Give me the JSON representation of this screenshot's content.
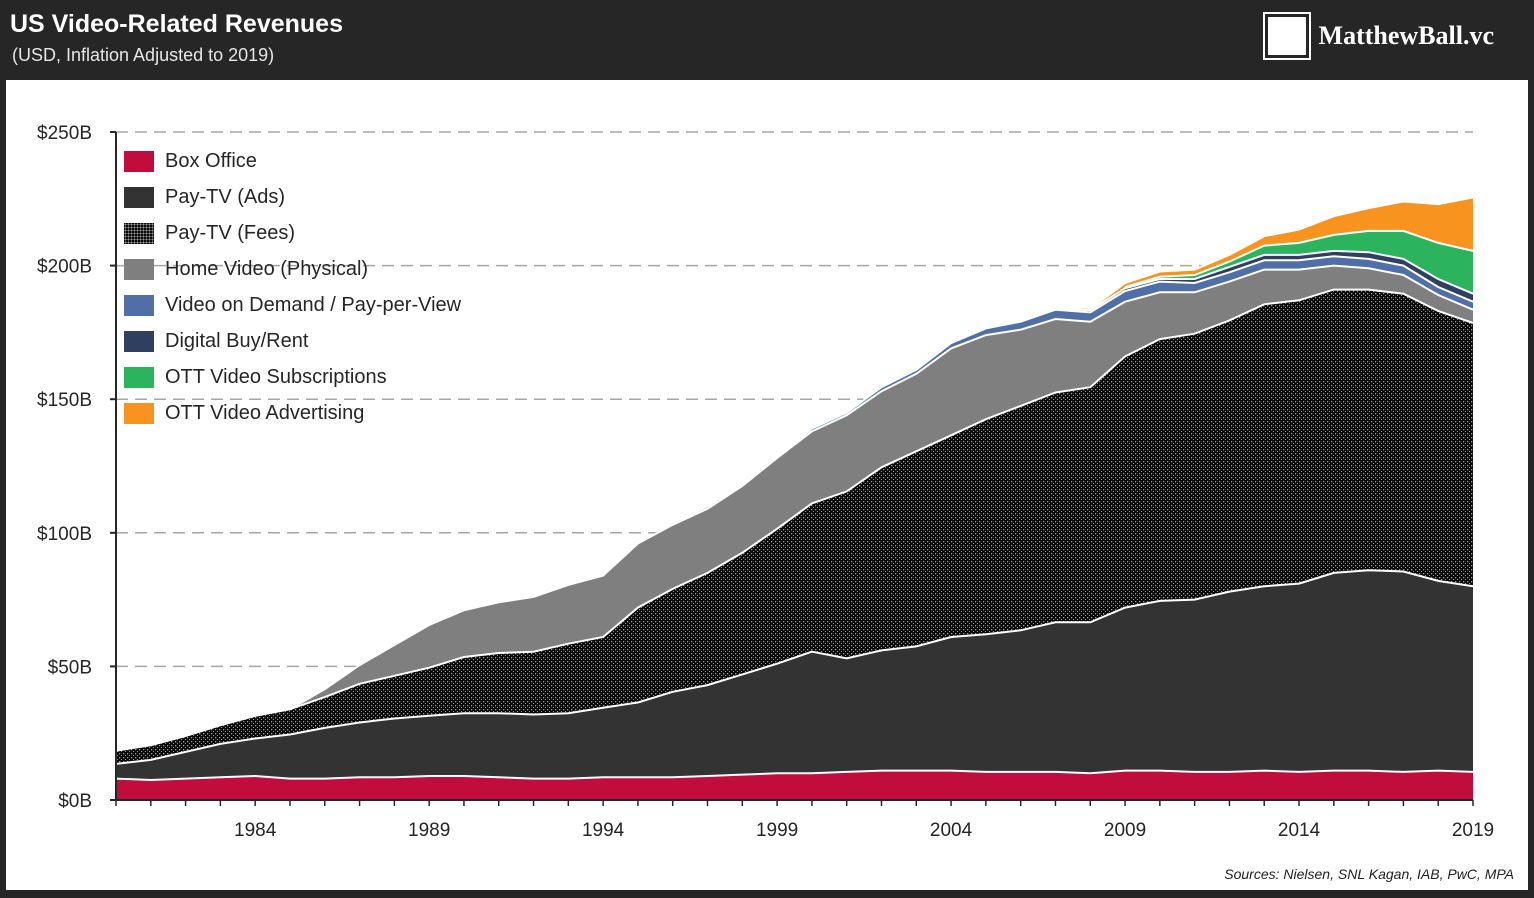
{
  "header": {
    "title": "US Video-Related Revenues",
    "subtitle": "(USD, Inflation Adjusted to 2019)",
    "brand": "MatthewBall.vc"
  },
  "source": "Sources: Nielsen, SNL Kagan, IAB, PwC, MPA",
  "chart_data": {
    "type": "area",
    "stacked": true,
    "x": [
      1980,
      1981,
      1982,
      1983,
      1984,
      1985,
      1986,
      1987,
      1988,
      1989,
      1990,
      1991,
      1992,
      1993,
      1994,
      1995,
      1996,
      1997,
      1998,
      1999,
      2000,
      2001,
      2002,
      2003,
      2004,
      2005,
      2006,
      2007,
      2008,
      2009,
      2010,
      2011,
      2012,
      2013,
      2014,
      2015,
      2016,
      2017,
      2018,
      2019
    ],
    "x_ticks": [
      "1984",
      "1989",
      "1994",
      "1999",
      "2004",
      "2009",
      "2014",
      "2019"
    ],
    "x_tick_values": [
      1984,
      1989,
      1994,
      1999,
      2004,
      2009,
      2014,
      2019
    ],
    "y_ticks": [
      "$0B",
      "$50B",
      "$100B",
      "$150B",
      "$200B",
      "$250B"
    ],
    "y_tick_values": [
      0,
      50,
      100,
      150,
      200,
      250
    ],
    "ylim": [
      0,
      250
    ],
    "grid": "horizontal dashed",
    "legend_position": "top-left",
    "series": [
      {
        "name": "Box Office",
        "color": "#c00d3c",
        "pattern": "solid",
        "values": [
          8,
          7.5,
          8,
          8.5,
          9,
          8,
          8,
          8.5,
          8.5,
          9,
          9,
          8.5,
          8,
          8,
          8.5,
          8.5,
          8.5,
          9,
          9.5,
          10,
          10,
          10.5,
          11,
          11,
          11,
          10.5,
          10.5,
          10.5,
          10,
          11,
          11,
          10.5,
          10.5,
          11,
          10.5,
          11,
          11,
          10.5,
          11,
          10.5
        ]
      },
      {
        "name": "Pay-TV (Ads)",
        "color": "#333333",
        "pattern": "solid",
        "values": [
          5.5,
          7.5,
          10,
          12.5,
          14,
          16.5,
          19,
          20.5,
          22,
          22.5,
          23.5,
          24,
          24,
          24.5,
          26,
          28,
          32,
          34,
          37.5,
          41,
          45.5,
          42.5,
          45,
          46.5,
          50,
          51.5,
          53,
          56,
          56.5,
          61,
          63.5,
          64.5,
          67.5,
          69,
          70.5,
          74,
          75,
          75,
          71,
          69.5
        ]
      },
      {
        "name": "Pay-TV (Fees)",
        "color": "#111111",
        "pattern": "dots",
        "values": [
          5,
          5.5,
          6,
          7,
          8.5,
          9.5,
          11.5,
          14.5,
          16,
          18,
          21,
          22.5,
          23.5,
          26,
          26.5,
          35.5,
          38.5,
          42,
          45.5,
          50.5,
          55.5,
          62.5,
          68.5,
          73,
          75.5,
          80.5,
          84,
          86,
          88,
          94,
          98,
          99.5,
          101.5,
          105.5,
          106,
          106,
          105,
          104,
          101,
          98.5
        ]
      },
      {
        "name": "Home Video (Physical)",
        "color": "#7f7f7f",
        "pattern": "solid",
        "values": [
          0,
          0,
          0,
          0,
          0,
          0,
          3,
          7,
          11.5,
          16,
          17.5,
          19,
          20.5,
          22,
          23,
          24,
          24,
          24,
          25,
          26.5,
          27,
          28.5,
          28.5,
          29,
          32.5,
          31.5,
          28.5,
          27.5,
          24.5,
          20.5,
          17.5,
          15.5,
          14.5,
          13,
          11.5,
          9,
          8,
          7,
          6,
          5
        ]
      },
      {
        "name": "Video on Demand / Pay-per-View",
        "color": "#4f6fa6",
        "pattern": "solid",
        "values": [
          0,
          0,
          0,
          0,
          0,
          0,
          0,
          0,
          0,
          0,
          0,
          0,
          0,
          0,
          0,
          0,
          0,
          0.5,
          0.5,
          0.5,
          1,
          1,
          1.5,
          1.5,
          2,
          2.5,
          3,
          3.5,
          3.5,
          4,
          4,
          3.5,
          3.5,
          3.5,
          3.5,
          3.5,
          3.5,
          3.5,
          3,
          3
        ]
      },
      {
        "name": "Digital Buy/Rent",
        "color": "#2e3f5f",
        "pattern": "solid",
        "values": [
          0,
          0,
          0,
          0,
          0,
          0,
          0,
          0,
          0,
          0,
          0,
          0,
          0,
          0,
          0,
          0,
          0,
          0,
          0,
          0,
          0,
          0,
          0,
          0,
          0,
          0,
          0.3,
          0.5,
          0.8,
          1,
          1,
          1.5,
          2,
          2,
          2,
          2,
          2.5,
          2.5,
          3,
          3
        ]
      },
      {
        "name": "OTT Video Subscriptions",
        "color": "#2cb35e",
        "pattern": "solid",
        "values": [
          0,
          0,
          0,
          0,
          0,
          0,
          0,
          0,
          0,
          0,
          0,
          0,
          0,
          0,
          0,
          0,
          0,
          0,
          0,
          0,
          0,
          0,
          0,
          0,
          0,
          0,
          0,
          0,
          0,
          0.5,
          0.8,
          1.5,
          2,
          3.5,
          4.5,
          6,
          8,
          10.5,
          13.5,
          16
        ]
      },
      {
        "name": "OTT Video Advertising",
        "color": "#f7931e",
        "pattern": "solid",
        "values": [
          0,
          0,
          0,
          0,
          0,
          0,
          0,
          0,
          0,
          0,
          0,
          0,
          0,
          0,
          0,
          0,
          0,
          0,
          0,
          0,
          0,
          0,
          0,
          0,
          0,
          0,
          0,
          0,
          0.5,
          1.5,
          2,
          2,
          2.5,
          3.5,
          5,
          7,
          8.5,
          11,
          14.5,
          20
        ]
      }
    ]
  }
}
